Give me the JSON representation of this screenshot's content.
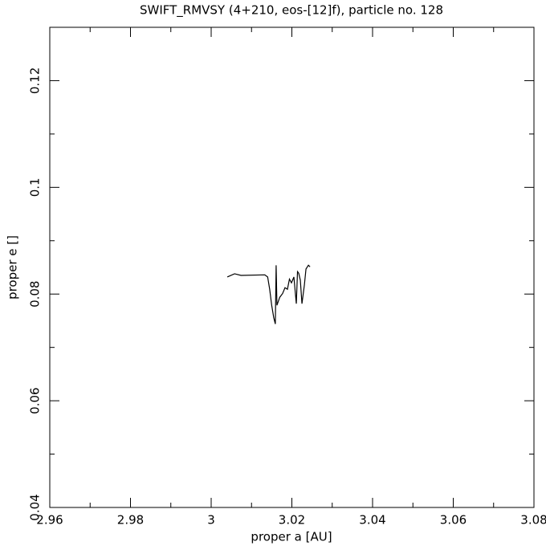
{
  "chart_data": {
    "type": "line",
    "title": "SWIFT_RMVSY (4+210, eos-[12]f), particle no. 128",
    "x_label": "proper a [AU]",
    "y_label": "proper e []",
    "color": "#000000",
    "xlim": [
      2.96,
      3.08
    ],
    "xticks": [
      2.96,
      2.98,
      3,
      3.02,
      3.04,
      3.06,
      3.08
    ],
    "ylim": [
      0.04,
      0.13
    ],
    "yticks": [
      0.04,
      0.06,
      0.08,
      0.1,
      0.12
    ],
    "x": [
      3.004,
      3.0058,
      3.0074,
      3.0133,
      3.014,
      3.0145,
      3.015,
      3.0155,
      3.0159,
      3.0161,
      3.0163,
      3.017,
      3.0177,
      3.0183,
      3.0189,
      3.0194,
      3.0199,
      3.0205,
      3.0211,
      3.0214,
      3.0217,
      3.0221,
      3.0225,
      3.0231,
      3.0235,
      3.0241,
      3.0245
    ],
    "values": [
      0.0832,
      0.0838,
      0.0835,
      0.0836,
      0.0832,
      0.0809,
      0.0779,
      0.0756,
      0.0744,
      0.0854,
      0.0779,
      0.0794,
      0.0801,
      0.0812,
      0.0809,
      0.0828,
      0.0821,
      0.0832,
      0.0782,
      0.0842,
      0.0839,
      0.0826,
      0.0782,
      0.0817,
      0.0847,
      0.0854,
      0.0851
    ]
  }
}
